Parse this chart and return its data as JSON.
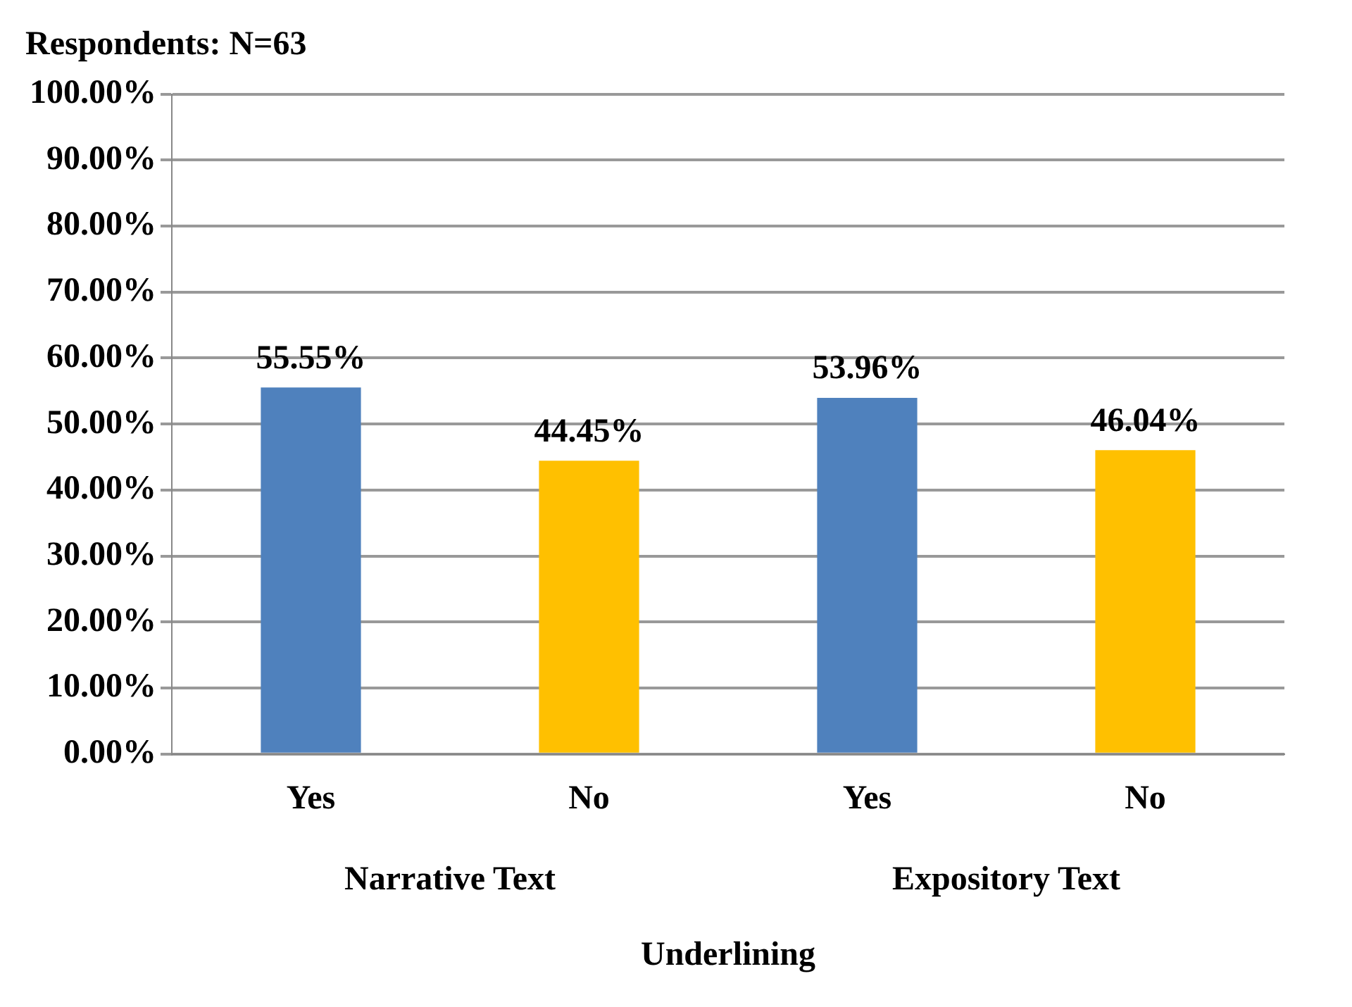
{
  "chart_data": {
    "type": "bar",
    "title": "Respondents: N=63",
    "xlabel": "Underlining",
    "categories": [
      "Yes",
      "No",
      "Yes",
      "No"
    ],
    "values": [
      55.55,
      44.45,
      53.96,
      46.04
    ],
    "colors": [
      "#4f81bd",
      "#ffc000",
      "#4f81bd",
      "#ffc000"
    ],
    "value_labels": [
      "55.55%",
      "44.45%",
      "53.96%",
      "46.04%"
    ],
    "annotations": [
      "Narrative Text",
      "Expository Text"
    ],
    "ylim": [
      0,
      100
    ],
    "yticks": [
      {
        "value": 0,
        "label": "0.00%"
      },
      {
        "value": 10,
        "label": "10.00%"
      },
      {
        "value": 20,
        "label": "20.00%"
      },
      {
        "value": 30,
        "label": "30.00%"
      },
      {
        "value": 40,
        "label": "40.00%"
      },
      {
        "value": 50,
        "label": "50.00%"
      },
      {
        "value": 60,
        "label": "60.00%"
      },
      {
        "value": 70,
        "label": "70.00%"
      },
      {
        "value": 80,
        "label": "80.00%"
      },
      {
        "value": 90,
        "label": "90.00%"
      },
      {
        "value": 100,
        "label": "100.00%"
      }
    ],
    "grid": "y",
    "legend": false
  }
}
